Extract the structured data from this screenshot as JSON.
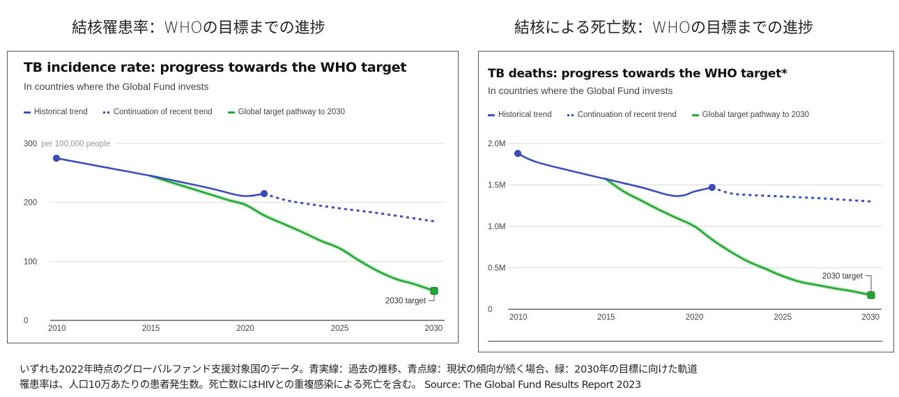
{
  "page": {
    "jp_titles": [
      "結核罹患率：WHOの目標までの進捗",
      "結核による死亡数：WHOの目標までの進捗"
    ],
    "footer_lines": [
      "いずれも2022年時点のグローバルファンド支援対象国のデータ。青実線：過去の推移、青点線：現状の傾向が続く場合、緑：2030年の目標に向けた軌道",
      "罹患率は、人口10万あたりの患者発生数。死亡数にはHIVとの重複感染による死亡を含む。 Source: The Global Fund Results Report 2023"
    ]
  },
  "colors": {
    "historical": "#3b4cc0",
    "continuation": "#3b4cc0",
    "target": "#22a832",
    "grid": "#d9d9d9",
    "axis": "#666666"
  },
  "chart_data": [
    {
      "type": "line",
      "title": "TB incidence rate: progress towards the WHO target",
      "subtitle": "In countries where the Global Fund invests",
      "ylabel": "per 100,000 people",
      "xlabel": "",
      "xlim": [
        2010,
        2030
      ],
      "ylim": [
        0,
        300
      ],
      "x_ticks": [
        "2010",
        "2015",
        "2020",
        "2025",
        "2030"
      ],
      "y_ticks": [
        "0",
        "100",
        "200",
        "300"
      ],
      "grid": true,
      "legend": [
        "Historical trend",
        "Continuation of recent trend",
        "Global target pathway to 2030"
      ],
      "legend_position": "top-left",
      "annotation": "2030 target",
      "series": [
        {
          "name": "Historical trend",
          "style": "solid",
          "x": [
            2010,
            2012,
            2015,
            2018,
            2019.5,
            2020.2,
            2021
          ],
          "y": [
            275,
            263,
            245,
            225,
            213,
            211,
            215
          ]
        },
        {
          "name": "Continuation of recent trend",
          "style": "dotted",
          "x": [
            2021,
            2022,
            2023,
            2025,
            2027,
            2030
          ],
          "y": [
            215,
            205,
            199,
            190,
            182,
            168
          ]
        },
        {
          "name": "Global target pathway to 2030",
          "style": "solid",
          "x": [
            2015,
            2017,
            2019,
            2020,
            2021,
            2022,
            2023,
            2024,
            2025,
            2026,
            2027,
            2028,
            2029,
            2030
          ],
          "y": [
            245,
            225,
            205,
            196,
            178,
            164,
            150,
            135,
            122,
            102,
            84,
            70,
            61,
            50
          ]
        }
      ],
      "markers": [
        {
          "series": "Historical trend",
          "x": 2010,
          "y": 275
        },
        {
          "series": "Historical trend",
          "x": 2021,
          "y": 215
        },
        {
          "series": "Global target pathway to 2030",
          "x": 2030,
          "y": 50,
          "label": "2030 target"
        }
      ]
    },
    {
      "type": "line",
      "title": "TB deaths: progress towards the WHO target*",
      "subtitle": "In countries where the Global Fund invests",
      "ylabel": "",
      "xlabel": "",
      "xlim": [
        2010,
        2030
      ],
      "ylim": [
        0,
        2000000
      ],
      "x_ticks": [
        "2010",
        "2015",
        "2020",
        "2025",
        "2030"
      ],
      "y_ticks": [
        "0",
        "0.5M",
        "1.0M",
        "1.5M",
        "2.0M"
      ],
      "grid": true,
      "legend": [
        "Historical trend",
        "Continuation of recent trend",
        "Global target pathway to 2030"
      ],
      "legend_position": "top-left",
      "annotation": "2030 target",
      "series": [
        {
          "name": "Historical trend",
          "style": "solid",
          "x": [
            2010,
            2011,
            2013,
            2015,
            2017,
            2018.5,
            2019.3,
            2020,
            2021
          ],
          "y": [
            1880000,
            1780000,
            1670000,
            1570000,
            1470000,
            1380000,
            1370000,
            1420000,
            1470000
          ]
        },
        {
          "name": "Continuation of recent trend",
          "style": "dotted",
          "x": [
            2021,
            2022,
            2023,
            2025,
            2027,
            2030
          ],
          "y": [
            1470000,
            1400000,
            1380000,
            1360000,
            1340000,
            1300000
          ]
        },
        {
          "name": "Global target pathway to 2030",
          "style": "solid",
          "x": [
            2015,
            2016,
            2017,
            2018,
            2019,
            2020,
            2021,
            2022,
            2023,
            2024,
            2025,
            2026,
            2027,
            2028,
            2029,
            2030
          ],
          "y": [
            1570000,
            1420000,
            1310000,
            1200000,
            1100000,
            1000000,
            840000,
            700000,
            580000,
            490000,
            400000,
            330000,
            290000,
            250000,
            215000,
            170000
          ]
        }
      ],
      "markers": [
        {
          "series": "Historical trend",
          "x": 2010,
          "y": 1880000
        },
        {
          "series": "Historical trend",
          "x": 2021,
          "y": 1470000
        },
        {
          "series": "Global target pathway to 2030",
          "x": 2030,
          "y": 170000,
          "label": "2030 target"
        }
      ]
    }
  ]
}
